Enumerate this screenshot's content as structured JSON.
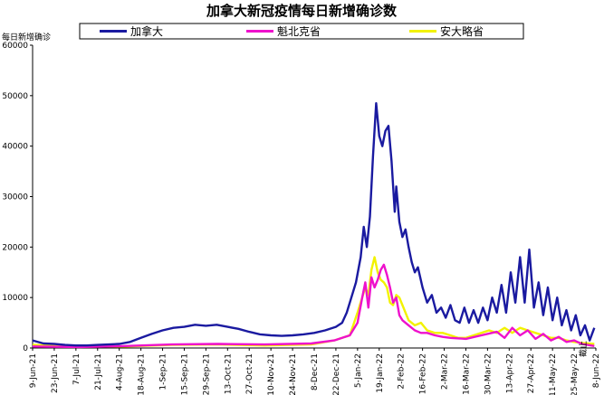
{
  "chart_data": {
    "type": "line",
    "title": "加拿大新冠疫情每日新增确诊数",
    "ylabel": "每日新增确诊",
    "xlabel_suffix": "截止",
    "ylim": [
      0,
      60000
    ],
    "yticks": [
      0,
      10000,
      20000,
      30000,
      40000,
      50000,
      60000
    ],
    "x_tick_labels": [
      "9-Jun-21",
      "23-Jun-21",
      "7-Jul-21",
      "21-Jul-21",
      "4-Aug-21",
      "18-Aug-21",
      "1-Sep-21",
      "15-Sep-21",
      "29-Sep-21",
      "13-Oct-21",
      "27-Oct-21",
      "10-Nov-21",
      "24-Nov-21",
      "8-Dec-21",
      "22-Dec-21",
      "5-Jan-22",
      "19-Jan-22",
      "2-Feb-22",
      "16-Feb-22",
      "2-Mar-22",
      "16-Mar-22",
      "30-Mar-22",
      "13-Apr-22",
      "27-Apr-22",
      "11-May-22",
      "25-May-22",
      "8-Jun-22"
    ],
    "grid": false,
    "legend_position": "top",
    "series": [
      {
        "name": "加拿大",
        "color": "#1a1aa0",
        "points": [
          [
            0,
            1500
          ],
          [
            7,
            900
          ],
          [
            14,
            800
          ],
          [
            21,
            600
          ],
          [
            28,
            500
          ],
          [
            35,
            500
          ],
          [
            42,
            600
          ],
          [
            49,
            700
          ],
          [
            56,
            800
          ],
          [
            63,
            1200
          ],
          [
            70,
            2000
          ],
          [
            77,
            2800
          ],
          [
            84,
            3500
          ],
          [
            91,
            4000
          ],
          [
            98,
            4200
          ],
          [
            105,
            4600
          ],
          [
            112,
            4400
          ],
          [
            119,
            4600
          ],
          [
            126,
            4200
          ],
          [
            133,
            3800
          ],
          [
            140,
            3200
          ],
          [
            147,
            2700
          ],
          [
            154,
            2500
          ],
          [
            161,
            2400
          ],
          [
            168,
            2500
          ],
          [
            175,
            2700
          ],
          [
            182,
            3000
          ],
          [
            189,
            3500
          ],
          [
            196,
            4200
          ],
          [
            200,
            5000
          ],
          [
            203,
            7000
          ],
          [
            206,
            10000
          ],
          [
            209,
            13000
          ],
          [
            212,
            18000
          ],
          [
            214,
            24000
          ],
          [
            216,
            20000
          ],
          [
            218,
            26000
          ],
          [
            220,
            38000
          ],
          [
            222,
            48500
          ],
          [
            224,
            42000
          ],
          [
            226,
            40000
          ],
          [
            228,
            43000
          ],
          [
            230,
            44000
          ],
          [
            232,
            37000
          ],
          [
            234,
            27000
          ],
          [
            235,
            32000
          ],
          [
            237,
            25000
          ],
          [
            239,
            22000
          ],
          [
            241,
            23500
          ],
          [
            243,
            20000
          ],
          [
            245,
            17000
          ],
          [
            247,
            15000
          ],
          [
            249,
            16000
          ],
          [
            252,
            12000
          ],
          [
            255,
            9000
          ],
          [
            258,
            10500
          ],
          [
            261,
            7000
          ],
          [
            264,
            8000
          ],
          [
            267,
            6000
          ],
          [
            270,
            8500
          ],
          [
            273,
            5500
          ],
          [
            276,
            5000
          ],
          [
            279,
            8000
          ],
          [
            282,
            5000
          ],
          [
            285,
            7500
          ],
          [
            288,
            5000
          ],
          [
            291,
            8000
          ],
          [
            294,
            5500
          ],
          [
            297,
            10000
          ],
          [
            300,
            7000
          ],
          [
            303,
            12500
          ],
          [
            306,
            7000
          ],
          [
            309,
            15000
          ],
          [
            312,
            9000
          ],
          [
            315,
            18000
          ],
          [
            318,
            9000
          ],
          [
            321,
            19500
          ],
          [
            324,
            8000
          ],
          [
            327,
            13000
          ],
          [
            330,
            6500
          ],
          [
            333,
            12000
          ],
          [
            336,
            5500
          ],
          [
            339,
            10000
          ],
          [
            342,
            4500
          ],
          [
            345,
            7500
          ],
          [
            348,
            3500
          ],
          [
            351,
            6500
          ],
          [
            354,
            2500
          ],
          [
            357,
            4500
          ],
          [
            360,
            1500
          ],
          [
            363,
            4000
          ]
        ]
      },
      {
        "name": "魁北克省",
        "color": "#ee11cc",
        "points": [
          [
            0,
            300
          ],
          [
            30,
            200
          ],
          [
            60,
            400
          ],
          [
            90,
            700
          ],
          [
            120,
            800
          ],
          [
            150,
            700
          ],
          [
            180,
            900
          ],
          [
            195,
            1500
          ],
          [
            205,
            2500
          ],
          [
            210,
            5000
          ],
          [
            213,
            10000
          ],
          [
            215,
            13000
          ],
          [
            217,
            8000
          ],
          [
            219,
            14000
          ],
          [
            221,
            12000
          ],
          [
            223,
            13500
          ],
          [
            225,
            15500
          ],
          [
            227,
            16500
          ],
          [
            229,
            14500
          ],
          [
            231,
            12000
          ],
          [
            233,
            9000
          ],
          [
            235,
            10000
          ],
          [
            237,
            6500
          ],
          [
            239,
            5500
          ],
          [
            243,
            4500
          ],
          [
            247,
            3500
          ],
          [
            251,
            3000
          ],
          [
            255,
            3000
          ],
          [
            260,
            2500
          ],
          [
            265,
            2200
          ],
          [
            270,
            2000
          ],
          [
            280,
            1800
          ],
          [
            290,
            2500
          ],
          [
            300,
            3200
          ],
          [
            305,
            2000
          ],
          [
            310,
            4000
          ],
          [
            315,
            2500
          ],
          [
            320,
            3500
          ],
          [
            325,
            1800
          ],
          [
            330,
            2800
          ],
          [
            335,
            1500
          ],
          [
            340,
            2200
          ],
          [
            345,
            1200
          ],
          [
            350,
            1500
          ],
          [
            355,
            800
          ],
          [
            363,
            400
          ]
        ]
      },
      {
        "name": "安大略省",
        "color": "#f2f200",
        "points": [
          [
            0,
            600
          ],
          [
            30,
            300
          ],
          [
            60,
            300
          ],
          [
            90,
            600
          ],
          [
            120,
            700
          ],
          [
            150,
            500
          ],
          [
            180,
            700
          ],
          [
            195,
            1500
          ],
          [
            205,
            2500
          ],
          [
            210,
            7000
          ],
          [
            213,
            10000
          ],
          [
            215,
            12000
          ],
          [
            217,
            10500
          ],
          [
            219,
            15500
          ],
          [
            221,
            18000
          ],
          [
            223,
            15000
          ],
          [
            225,
            13500
          ],
          [
            227,
            13000
          ],
          [
            229,
            12000
          ],
          [
            231,
            9000
          ],
          [
            233,
            8500
          ],
          [
            235,
            10500
          ],
          [
            237,
            10000
          ],
          [
            239,
            8500
          ],
          [
            241,
            7000
          ],
          [
            243,
            5500
          ],
          [
            247,
            4500
          ],
          [
            251,
            5000
          ],
          [
            255,
            3500
          ],
          [
            260,
            3000
          ],
          [
            265,
            3000
          ],
          [
            270,
            2500
          ],
          [
            275,
            2000
          ],
          [
            280,
            2000
          ],
          [
            285,
            2500
          ],
          [
            290,
            3000
          ],
          [
            295,
            3500
          ],
          [
            300,
            3000
          ],
          [
            305,
            4000
          ],
          [
            310,
            3000
          ],
          [
            315,
            4000
          ],
          [
            320,
            3500
          ],
          [
            325,
            3000
          ],
          [
            330,
            2500
          ],
          [
            335,
            2000
          ],
          [
            340,
            2000
          ],
          [
            345,
            1500
          ],
          [
            350,
            1200
          ],
          [
            355,
            1000
          ],
          [
            363,
            800
          ]
        ]
      }
    ]
  }
}
